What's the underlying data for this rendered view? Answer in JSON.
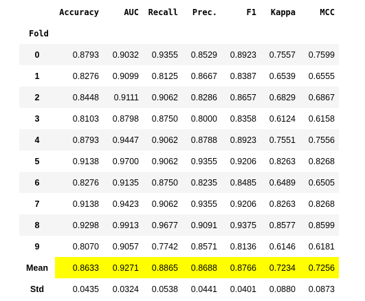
{
  "table": {
    "columns": [
      "Accuracy",
      "AUC",
      "Recall",
      "Prec.",
      "F1",
      "Kappa",
      "MCC"
    ],
    "index_name": "Fold",
    "rows": [
      {
        "index": "0",
        "values": [
          "0.8793",
          "0.9032",
          "0.9355",
          "0.8529",
          "0.8923",
          "0.7557",
          "0.7599"
        ]
      },
      {
        "index": "1",
        "values": [
          "0.8276",
          "0.9099",
          "0.8125",
          "0.8667",
          "0.8387",
          "0.6539",
          "0.6555"
        ]
      },
      {
        "index": "2",
        "values": [
          "0.8448",
          "0.9111",
          "0.9062",
          "0.8286",
          "0.8657",
          "0.6829",
          "0.6867"
        ]
      },
      {
        "index": "3",
        "values": [
          "0.8103",
          "0.8798",
          "0.8750",
          "0.8000",
          "0.8358",
          "0.6124",
          "0.6158"
        ]
      },
      {
        "index": "4",
        "values": [
          "0.8793",
          "0.9447",
          "0.9062",
          "0.8788",
          "0.8923",
          "0.7551",
          "0.7556"
        ]
      },
      {
        "index": "5",
        "values": [
          "0.9138",
          "0.9700",
          "0.9062",
          "0.9355",
          "0.9206",
          "0.8263",
          "0.8268"
        ]
      },
      {
        "index": "6",
        "values": [
          "0.8276",
          "0.9135",
          "0.8750",
          "0.8235",
          "0.8485",
          "0.6489",
          "0.6505"
        ]
      },
      {
        "index": "7",
        "values": [
          "0.9138",
          "0.9423",
          "0.9062",
          "0.9355",
          "0.9206",
          "0.8263",
          "0.8268"
        ]
      },
      {
        "index": "8",
        "values": [
          "0.9298",
          "0.9913",
          "0.9677",
          "0.9091",
          "0.9375",
          "0.8577",
          "0.8599"
        ]
      },
      {
        "index": "9",
        "values": [
          "0.8070",
          "0.9057",
          "0.7742",
          "0.8571",
          "0.8136",
          "0.6146",
          "0.6181"
        ]
      },
      {
        "index": "Mean",
        "values": [
          "0.8633",
          "0.9271",
          "0.8865",
          "0.8688",
          "0.8766",
          "0.7234",
          "0.7256"
        ]
      },
      {
        "index": "Std",
        "values": [
          "0.0435",
          "0.0324",
          "0.0538",
          "0.0441",
          "0.0401",
          "0.0880",
          "0.0873"
        ]
      }
    ],
    "highlight_row": "Mean",
    "highlight_color": "#ffff00",
    "zebra_color": "#f5f5f5"
  }
}
